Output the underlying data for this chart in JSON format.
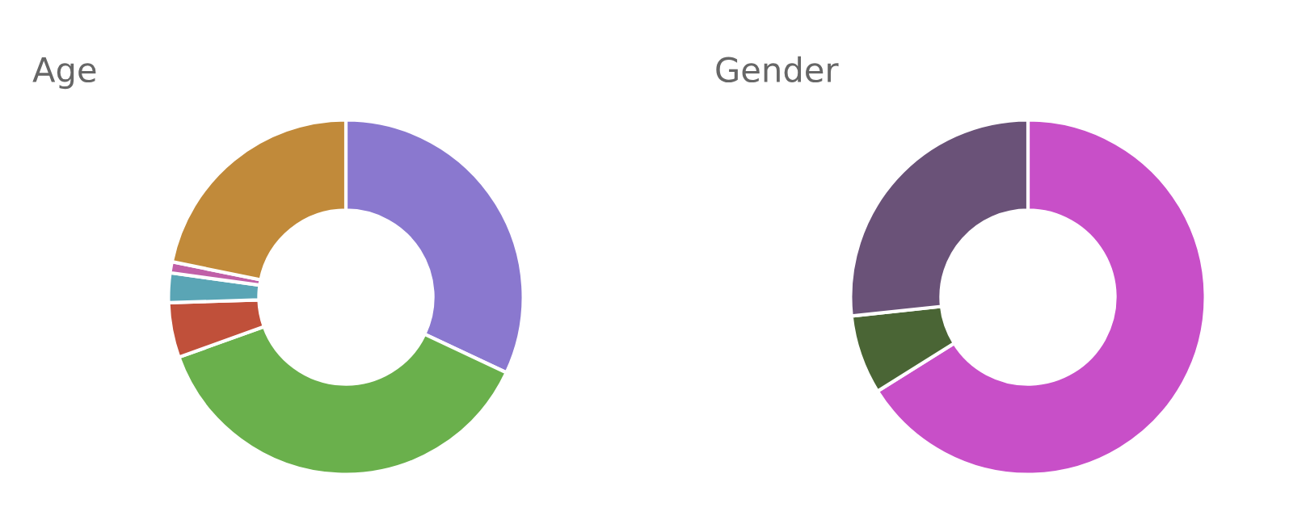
{
  "chart_data": [
    {
      "type": "donut",
      "title": "Age",
      "categories": [
        null,
        null,
        null,
        null,
        null,
        null
      ],
      "values": [
        32,
        37.5,
        5,
        2.7,
        1,
        21.8
      ],
      "colors": [
        "#8a78cf",
        "#6ab04c",
        "#c0503a",
        "#5aa5b5",
        "#c060a8",
        "#c18a3a"
      ]
    },
    {
      "type": "donut",
      "title": "Gender",
      "categories": [
        null,
        null,
        null
      ],
      "values": [
        66.1,
        7.2,
        26.7
      ],
      "colors": [
        "#c84fc8",
        "#4a6535",
        "#6a5278"
      ]
    }
  ]
}
